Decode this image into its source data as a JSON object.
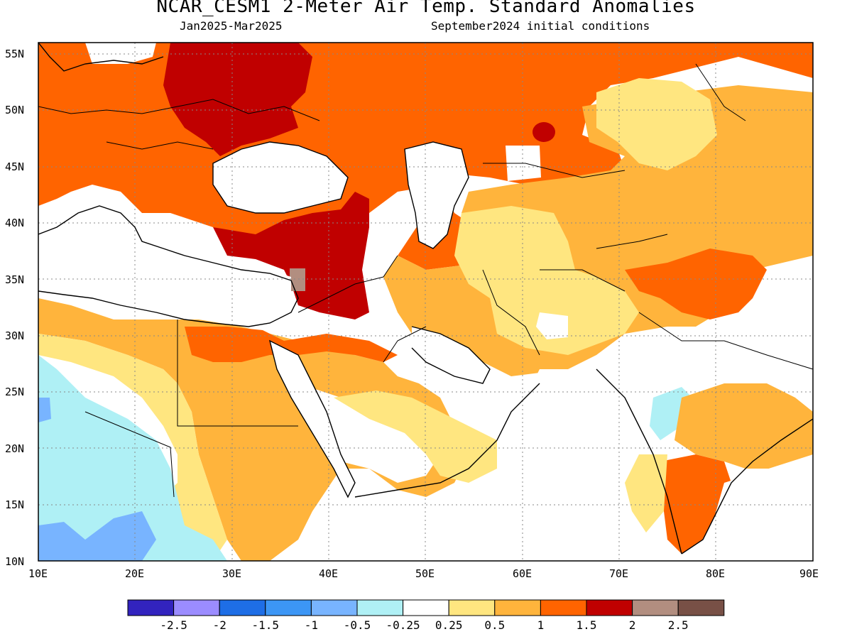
{
  "header": {
    "title": "NCAR_CESM1 2-Meter Air Temp. Standard Anomalies",
    "period": "Jan2025-Mar2025",
    "init": "September2024 initial conditions"
  },
  "map": {
    "lon_range": [
      10,
      90
    ],
    "lat_range": [
      10,
      56
    ],
    "lon_ticks": [
      "10E",
      "20E",
      "30E",
      "40E",
      "50E",
      "60E",
      "70E",
      "80E",
      "90E"
    ],
    "lat_ticks": [
      "10N",
      "15N",
      "20N",
      "25N",
      "30N",
      "35N",
      "40N",
      "45N",
      "50N",
      "55N"
    ],
    "gridlines": "dotted",
    "coastlines": true,
    "anomaly_regions": [
      {
        "name": "eastern-europe-black-sea-north",
        "level": "1.5-2",
        "color": "#c00000"
      },
      {
        "name": "turkey-iraq-syria",
        "level": "1.5-2",
        "color": "#c00000"
      },
      {
        "name": "levant-spot",
        "level": "2-2.5",
        "color": "#b28e80"
      },
      {
        "name": "europe-russia",
        "level": "1-1.5",
        "color": "#ff6400"
      },
      {
        "name": "central-asia-iran",
        "level": "0.5-1",
        "color": "#ffb43c"
      },
      {
        "name": "mongolia-kazakh-east",
        "level": "0.25-0.5",
        "color": "#ffe680"
      },
      {
        "name": "north-africa-west",
        "level": "-0.5 to -0.25",
        "color": "#aff0f5"
      },
      {
        "name": "sahel-east-africa",
        "level": "-1 to -0.5",
        "color": "#78b4ff"
      },
      {
        "name": "south-india",
        "level": "1-1.5",
        "color": "#ff6400"
      }
    ]
  },
  "colorbar": {
    "colors": [
      "#3223be",
      "#9b8cff",
      "#1e6ee6",
      "#3c96f5",
      "#78b4ff",
      "#aff0f5",
      "#ffffff",
      "#ffe680",
      "#ffb43c",
      "#ff6400",
      "#c00000",
      "#b28e80",
      "#785046"
    ],
    "labels": [
      "-2.5",
      "-2",
      "-1.5",
      "-1",
      "-0.5",
      "-0.25",
      "0.25",
      "0.5",
      "1",
      "1.5",
      "2",
      "2.5"
    ]
  }
}
